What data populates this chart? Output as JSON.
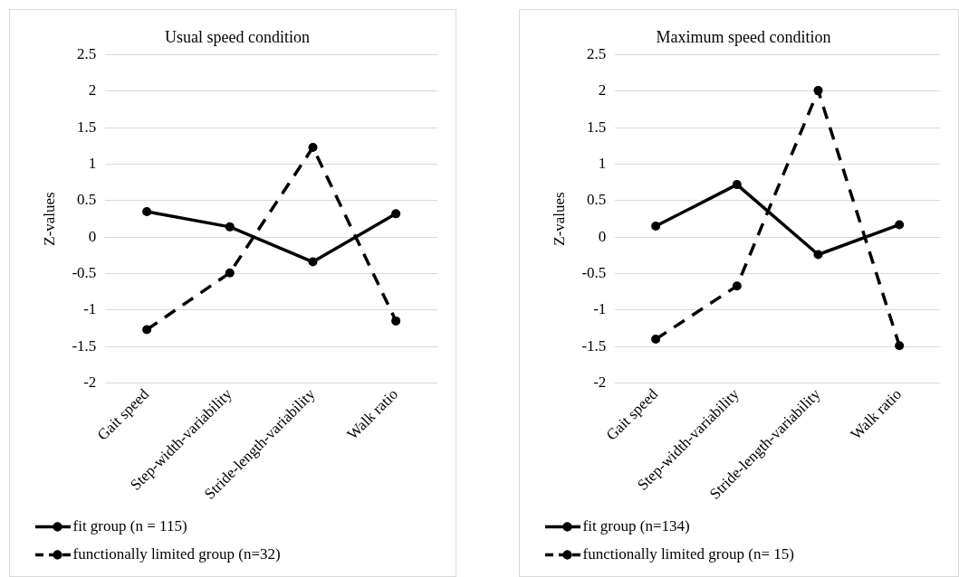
{
  "chart_data": [
    {
      "type": "line",
      "title": "Usual speed condition",
      "ylabel": "Z-values",
      "categories": [
        "Gait speed",
        "Step-width-variability",
        "Stride-length-variability",
        "Walk ratio"
      ],
      "series": [
        {
          "name": "fit group (n = 115)",
          "color": "#000000",
          "values": [
            0.35,
            0.14,
            -0.34,
            0.32
          ],
          "line_style": "solid"
        },
        {
          "name": "functionally limited group (n=32)",
          "color": "#000000",
          "values": [
            -1.27,
            -0.49,
            1.23,
            -1.15
          ],
          "line_style": "dashed"
        }
      ],
      "ylim": [
        -2,
        2.5
      ],
      "yticks": [
        -2,
        -1.5,
        -1,
        -0.5,
        0,
        0.5,
        1,
        1.5,
        2,
        2.5
      ],
      "grid": "y",
      "legend": "bottom",
      "marker": "circle"
    },
    {
      "type": "line",
      "title": "Maximum speed condition",
      "ylabel": "Z-values",
      "categories": [
        "Gait speed",
        "Step-width-variability",
        "Stride-length-variability",
        "Walk ratio"
      ],
      "series": [
        {
          "name": "fit group (n=134)",
          "color": "#000000",
          "values": [
            0.15,
            0.72,
            -0.24,
            0.17
          ],
          "line_style": "solid"
        },
        {
          "name": "functionally limited group (n= 15)",
          "color": "#000000",
          "values": [
            -1.4,
            -0.67,
            2.01,
            -1.49
          ],
          "line_style": "dashed"
        }
      ],
      "ylim": [
        -2,
        2.5
      ],
      "yticks": [
        -2,
        -1.5,
        -1,
        -0.5,
        0,
        0.5,
        1,
        1.5,
        2,
        2.5
      ],
      "grid": "y",
      "legend": "bottom",
      "marker": "circle"
    }
  ]
}
